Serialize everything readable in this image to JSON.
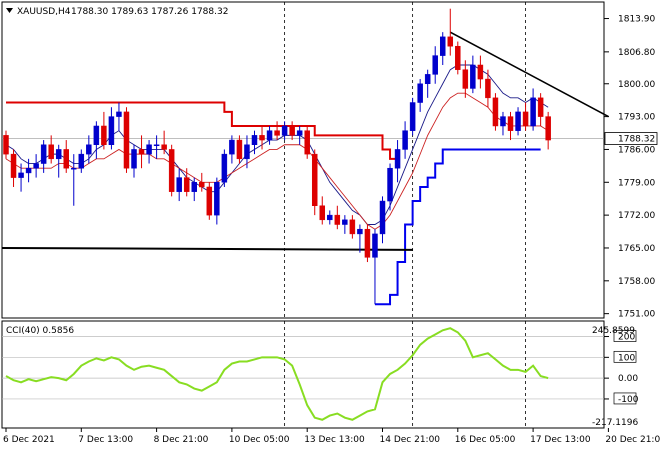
{
  "header": {
    "symbol_text": "XAUUSD,H4",
    "ohlc_text": "1788.30 1789.63 1787.26 1788.32",
    "menu_icon": "triangle-down-icon"
  },
  "indicator": {
    "label": "CCI(40) 0.5856",
    "max_label": "245.8599",
    "min_label": "-217.1196"
  },
  "colors": {
    "bull": "#0000cc",
    "bear": "#dd0000",
    "line_red": "#dd0000",
    "line_green": "#88dd22",
    "line_blue": "#0000ee",
    "line_black": "#000000",
    "grid": "#c8c8c8"
  },
  "chart_data": [
    {
      "type": "candlestick",
      "title": "XAUUSD,H4",
      "y_ticks": [
        1813.9,
        1806.8,
        1800.0,
        1793.0,
        1786.0,
        1779.0,
        1772.0,
        1765.0,
        1758.0,
        1751.0
      ],
      "y_range": [
        1750.5,
        1817.0
      ],
      "current_price": "1788.32",
      "x_tick_labels": [
        "6 Dec 2021",
        "7 Dec 13:00",
        "8 Dec 21:00",
        "10 Dec 05:00",
        "13 Dec 13:00",
        "14 Dec 21:00",
        "16 Dec 05:00",
        "17 Dec 13:00",
        "20 Dec 21:00"
      ],
      "x_tick_bars": [
        0,
        10,
        20,
        30,
        40,
        50,
        60,
        70,
        80
      ],
      "vertical_markers_at_bars": [
        37,
        54,
        69
      ],
      "candles": [
        [
          1789,
          1790,
          1784,
          1785
        ],
        [
          1785,
          1786,
          1778,
          1780
        ],
        [
          1780,
          1783,
          1777,
          1781
        ],
        [
          1781,
          1784,
          1779,
          1782
        ],
        [
          1782,
          1785,
          1780,
          1783
        ],
        [
          1783,
          1788,
          1781,
          1787
        ],
        [
          1787,
          1789,
          1783,
          1784
        ],
        [
          1784,
          1787,
          1780,
          1786
        ],
        [
          1786,
          1788,
          1781,
          1782
        ],
        [
          1782,
          1785,
          1774,
          1782
        ],
        [
          1782,
          1786,
          1781,
          1785
        ],
        [
          1785,
          1789,
          1783,
          1787
        ],
        [
          1787,
          1792,
          1784,
          1791
        ],
        [
          1791,
          1794,
          1786,
          1787
        ],
        [
          1787,
          1795,
          1786,
          1793
        ],
        [
          1793,
          1796,
          1790,
          1794
        ],
        [
          1794,
          1795,
          1781,
          1782
        ],
        [
          1782,
          1787,
          1780,
          1786
        ],
        [
          1786,
          1789,
          1782,
          1785
        ],
        [
          1785,
          1788,
          1783,
          1787
        ],
        [
          1787,
          1789,
          1784,
          1787
        ],
        [
          1787,
          1790,
          1785,
          1786
        ],
        [
          1786,
          1787,
          1776,
          1777
        ],
        [
          1777,
          1782,
          1775,
          1780
        ],
        [
          1780,
          1782,
          1776,
          1777
        ],
        [
          1777,
          1780,
          1775,
          1779
        ],
        [
          1779,
          1781,
          1777,
          1778
        ],
        [
          1778,
          1779,
          1771,
          1772
        ],
        [
          1772,
          1780,
          1770,
          1779
        ],
        [
          1779,
          1786,
          1778,
          1785
        ],
        [
          1785,
          1789,
          1783,
          1788
        ],
        [
          1788,
          1789,
          1783,
          1784
        ],
        [
          1784,
          1789,
          1782,
          1787
        ],
        [
          1787,
          1790,
          1785,
          1789
        ],
        [
          1789,
          1791,
          1786,
          1788
        ],
        [
          1788,
          1791,
          1787,
          1790
        ],
        [
          1790,
          1792,
          1788,
          1789
        ],
        [
          1789,
          1792,
          1788,
          1791
        ],
        [
          1791,
          1792,
          1788,
          1789
        ],
        [
          1789,
          1791,
          1787,
          1790
        ],
        [
          1790,
          1791,
          1784,
          1785
        ],
        [
          1785,
          1786,
          1772,
          1774
        ],
        [
          1774,
          1776,
          1770,
          1771
        ],
        [
          1771,
          1773,
          1770,
          1772
        ],
        [
          1772,
          1774,
          1769,
          1770
        ],
        [
          1770,
          1772,
          1768,
          1771
        ],
        [
          1771,
          1772,
          1767,
          1768
        ],
        [
          1768,
          1770,
          1764,
          1769
        ],
        [
          1769,
          1770,
          1762,
          1763
        ],
        [
          1763,
          1769,
          1753,
          1768
        ],
        [
          1768,
          1776,
          1766,
          1775
        ],
        [
          1775,
          1783,
          1773,
          1782
        ],
        [
          1782,
          1788,
          1779,
          1786
        ],
        [
          1786,
          1792,
          1784,
          1790
        ],
        [
          1790,
          1797,
          1789,
          1796
        ],
        [
          1796,
          1801,
          1794,
          1800
        ],
        [
          1800,
          1803,
          1797,
          1802
        ],
        [
          1802,
          1808,
          1800,
          1806
        ],
        [
          1806,
          1811,
          1804,
          1810
        ],
        [
          1810,
          1816,
          1806,
          1808
        ],
        [
          1808,
          1809,
          1802,
          1803
        ],
        [
          1803,
          1805,
          1797,
          1799
        ],
        [
          1799,
          1806,
          1798,
          1804
        ],
        [
          1804,
          1806,
          1799,
          1801
        ],
        [
          1801,
          1803,
          1795,
          1797
        ],
        [
          1797,
          1798,
          1790,
          1791
        ],
        [
          1791,
          1794,
          1789,
          1793
        ],
        [
          1793,
          1794,
          1788,
          1790
        ],
        [
          1790,
          1795,
          1789,
          1794
        ],
        [
          1794,
          1796,
          1790,
          1791
        ],
        [
          1791,
          1799,
          1790,
          1797
        ],
        [
          1797,
          1798,
          1791,
          1793
        ],
        [
          1793,
          1794,
          1786,
          1788
        ]
      ],
      "series": [
        {
          "kind": "envelope_red",
          "values": [
            1796,
            1796,
            1796,
            1796,
            1796,
            1796,
            1796,
            1796,
            1796,
            1796,
            1796,
            1796,
            1796,
            1796,
            1796,
            1796,
            1796,
            1796,
            1796,
            1796,
            1796,
            1796,
            1796,
            1796,
            1796,
            1796,
            1796,
            1796,
            1796,
            1794,
            1791,
            1791,
            1791,
            1791,
            1791,
            1791,
            1791,
            1791,
            1791,
            1791,
            1791,
            1789,
            1789,
            1789,
            1789,
            1789,
            1789,
            1789,
            1789,
            1789,
            1786,
            1784,
            1784
          ]
        },
        {
          "kind": "envelope_blue",
          "start_bar": 49,
          "values": [
            1753,
            1753,
            1755,
            1762,
            1770,
            1775,
            1778,
            1780,
            1783,
            1786,
            1786,
            1786,
            1786,
            1786,
            1786,
            1786,
            1786,
            1786,
            1786,
            1786,
            1786,
            1786,
            1786
          ]
        },
        {
          "kind": "ma_fast_blue",
          "values": [
            1787,
            1786,
            1784,
            1783,
            1783,
            1784,
            1785,
            1785,
            1784,
            1783,
            1783,
            1784,
            1786,
            1787,
            1789,
            1790,
            1788,
            1787,
            1786,
            1786,
            1786,
            1786,
            1784,
            1782,
            1780,
            1779,
            1778,
            1777,
            1777,
            1779,
            1781,
            1783,
            1785,
            1786,
            1787,
            1788,
            1788,
            1789,
            1789,
            1789,
            1788,
            1785,
            1782,
            1779,
            1777,
            1775,
            1773,
            1772,
            1770,
            1770,
            1771,
            1774,
            1778,
            1782,
            1786,
            1790,
            1794,
            1797,
            1800,
            1803,
            1804,
            1804,
            1804,
            1803,
            1802,
            1800,
            1798,
            1797,
            1797,
            1796,
            1797,
            1796,
            1795
          ]
        },
        {
          "kind": "ma_slow_red",
          "values": [
            1784,
            1783,
            1782,
            1782,
            1782,
            1782,
            1782,
            1783,
            1783,
            1782,
            1782,
            1783,
            1784,
            1784,
            1785,
            1786,
            1785,
            1785,
            1785,
            1785,
            1784,
            1784,
            1783,
            1782,
            1781,
            1780,
            1779,
            1779,
            1779,
            1780,
            1781,
            1782,
            1783,
            1784,
            1785,
            1786,
            1786,
            1787,
            1787,
            1787,
            1786,
            1784,
            1782,
            1780,
            1778,
            1776,
            1774,
            1772,
            1770,
            1769,
            1770,
            1772,
            1775,
            1778,
            1781,
            1785,
            1789,
            1792,
            1795,
            1797,
            1798,
            1798,
            1797,
            1796,
            1795,
            1793,
            1792,
            1791,
            1791,
            1791,
            1791,
            1791,
            1790
          ]
        },
        {
          "kind": "resistance_black",
          "values": [
            1765,
            1764.6
          ]
        },
        {
          "kind": "trendline_black",
          "values": [
            1811,
            1793
          ]
        }
      ]
    },
    {
      "type": "line",
      "title": "CCI(40) 0.5856",
      "y_ticks": [
        200,
        100,
        0.0,
        -100
      ],
      "y_range": [
        -230,
        265
      ],
      "max": 245.8599,
      "min": -217.1196,
      "series": [
        {
          "name": "CCI(40)",
          "values": [
            10,
            -10,
            -20,
            -5,
            -15,
            -5,
            5,
            0,
            -10,
            20,
            60,
            80,
            95,
            85,
            100,
            90,
            60,
            40,
            55,
            60,
            50,
            40,
            10,
            -20,
            -30,
            -50,
            -60,
            -40,
            -20,
            40,
            70,
            80,
            80,
            90,
            100,
            100,
            100,
            90,
            60,
            -30,
            -130,
            -190,
            -200,
            -180,
            -170,
            -190,
            -200,
            -180,
            -160,
            -150,
            -20,
            20,
            40,
            70,
            110,
            160,
            190,
            210,
            230,
            240,
            220,
            180,
            100,
            110,
            120,
            90,
            60,
            40,
            40,
            30,
            60,
            10,
            0
          ]
        }
      ]
    }
  ]
}
